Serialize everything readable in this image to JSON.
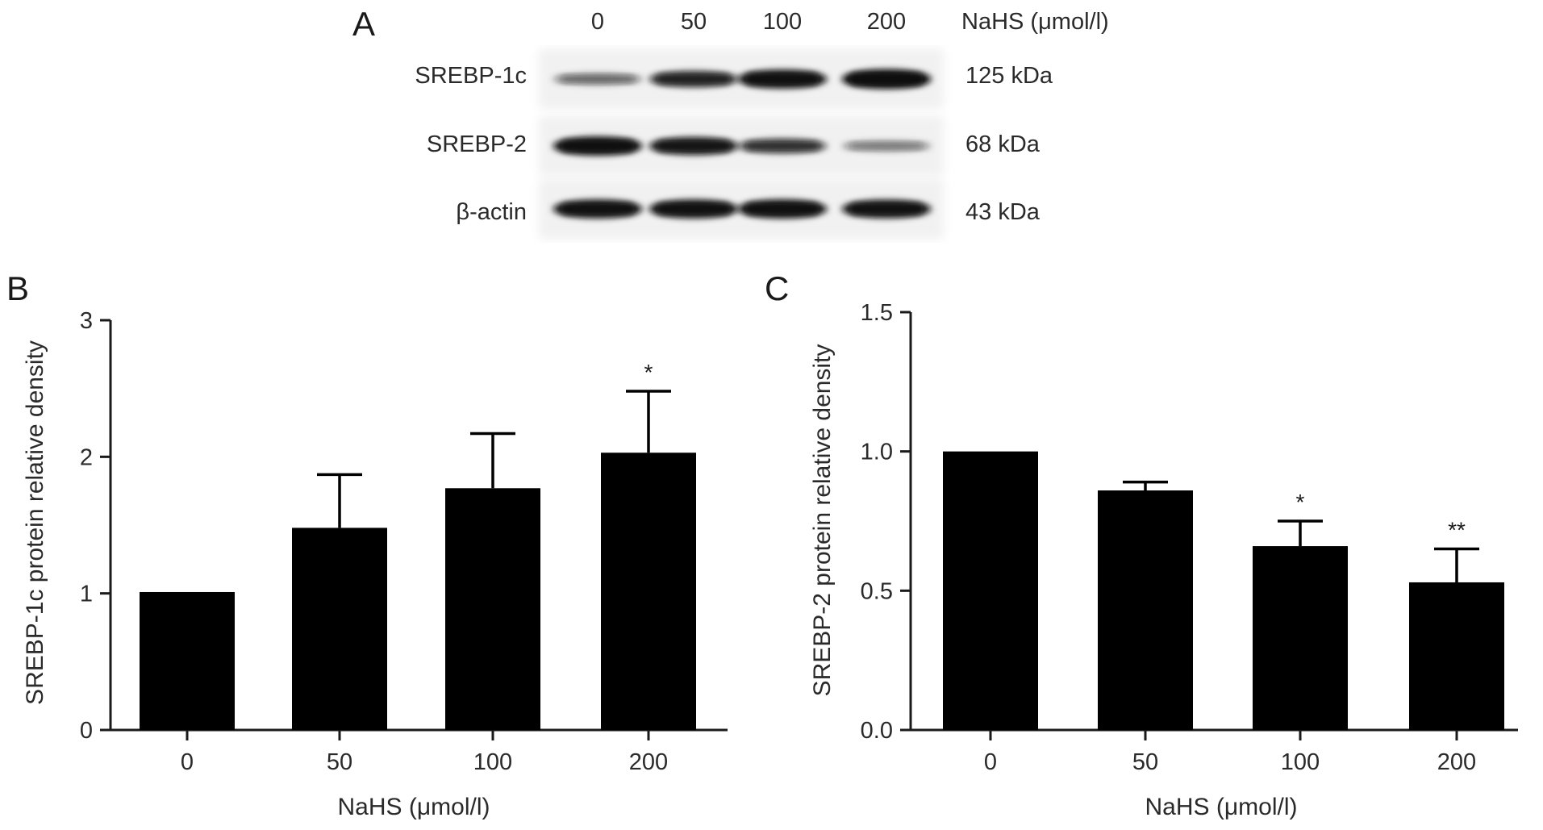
{
  "panel_a": {
    "letter": "A",
    "concentrations": [
      "0",
      "50",
      "100",
      "200"
    ],
    "treatment_label": "NaHS (μmol/l)",
    "blots": [
      {
        "protein": "SREBP-1c",
        "size": "125 kDa",
        "intensity": [
          0.3,
          0.72,
          0.93,
          1.0
        ]
      },
      {
        "protein": "SREBP-2",
        "size": "68 kDa",
        "intensity": [
          0.95,
          0.85,
          0.6,
          0.22
        ]
      },
      {
        "protein": "β-actin",
        "size": "43 kDa",
        "intensity": [
          0.92,
          0.92,
          0.94,
          0.9
        ]
      }
    ],
    "colors": {
      "band": "#111111",
      "membrane": "#f1f1f1"
    }
  },
  "chart_data": [
    {
      "panel": "B",
      "type": "bar",
      "categories": [
        "0",
        "50",
        "100",
        "200"
      ],
      "values": [
        1.01,
        1.48,
        1.77,
        2.03
      ],
      "errors": [
        0,
        0.39,
        0.4,
        0.45
      ],
      "significance": [
        "",
        "",
        "",
        "*"
      ],
      "xlabel": "NaHS (μmol/l)",
      "ylabel": "SREBP-1c protein relative density",
      "ylim": [
        0,
        3
      ],
      "yticks": [
        "0",
        "1",
        "2",
        "3"
      ],
      "ytick_values": [
        0,
        1,
        2,
        3
      ],
      "bar_color": "#000000"
    },
    {
      "panel": "C",
      "type": "bar",
      "categories": [
        "0",
        "50",
        "100",
        "200"
      ],
      "values": [
        1.0,
        0.86,
        0.66,
        0.53
      ],
      "errors": [
        0,
        0.03,
        0.09,
        0.12
      ],
      "significance": [
        "",
        "",
        "*",
        "**"
      ],
      "xlabel": "NaHS (μmol/l)",
      "ylabel": "SREBP-2 protein relative density",
      "ylim": [
        0,
        1.5
      ],
      "yticks": [
        "0.0",
        "0.5",
        "1.0",
        "1.5"
      ],
      "ytick_values": [
        0,
        0.5,
        1.0,
        1.5
      ],
      "bar_color": "#000000"
    }
  ]
}
